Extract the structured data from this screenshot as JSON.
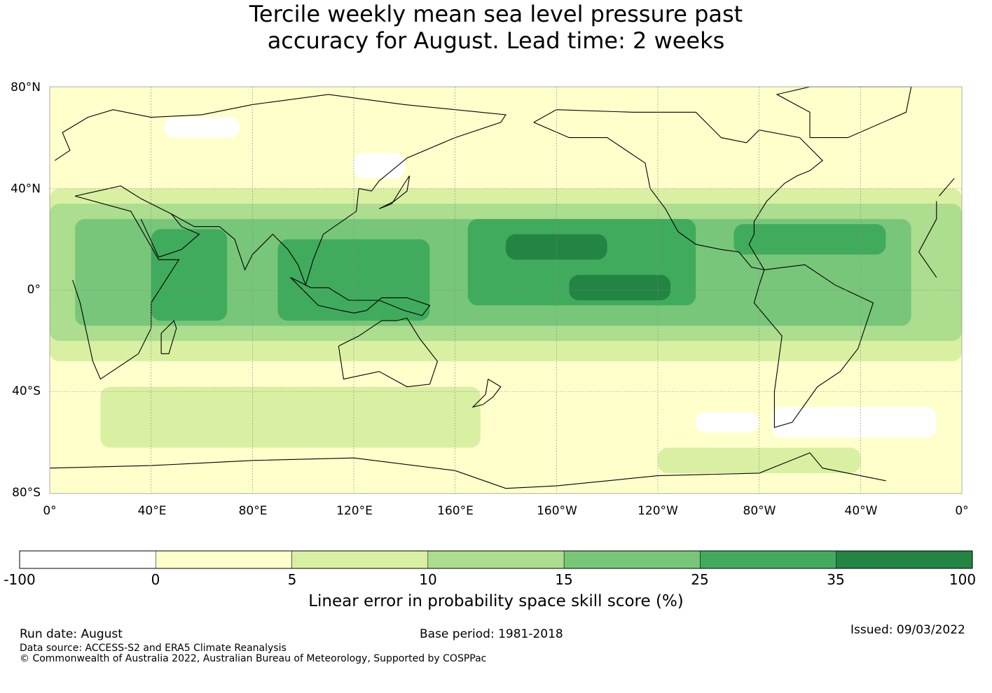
{
  "title": {
    "line1": "Tercile weekly mean sea level pressure past",
    "line2": "accuracy for August. Lead time: 2 weeks"
  },
  "map": {
    "lat_labels": [
      "80°N",
      "40°N",
      "0°",
      "40°S",
      "80°S"
    ],
    "lon_labels": [
      "0°",
      "40°E",
      "80°E",
      "120°E",
      "160°E",
      "160°W",
      "120°W",
      "80°W",
      "40°W",
      "0°"
    ],
    "projection": "plate-carree",
    "central_longitude": 180,
    "extent": {
      "lon": [
        0,
        360
      ],
      "lat": [
        -80,
        80
      ]
    },
    "gridlines": true,
    "coastlines": true
  },
  "colorbar": {
    "bins": [
      {
        "from": "-100",
        "to": "0",
        "color": "#ffffff"
      },
      {
        "from": "0",
        "to": "5",
        "color": "#ffffcc"
      },
      {
        "from": "5",
        "to": "10",
        "color": "#d9f0a3"
      },
      {
        "from": "10",
        "to": "15",
        "color": "#addd8e"
      },
      {
        "from": "15",
        "to": "25",
        "color": "#78c679"
      },
      {
        "from": "25",
        "to": "35",
        "color": "#41ab5d"
      },
      {
        "from": "35",
        "to": "100",
        "color": "#238443"
      }
    ],
    "ticks": [
      "-100",
      "0",
      "5",
      "10",
      "15",
      "25",
      "35",
      "100"
    ],
    "label": "Linear error in probability space skill score (%)"
  },
  "footer": {
    "run_date": "Run date: August",
    "base_period": "Base period: 1981-2018",
    "issued": "Issued: 09/03/2022",
    "data_source": "Data source: ACCESS-S2 and ERA5 Climate Reanalysis",
    "copyright": "© Commonwealth of Australia 2022, Australian Bureau of Meteorology, Supported by COSPPac"
  },
  "skill_regions": [
    {
      "bin": 2,
      "lon": [
        0,
        360
      ],
      "lat": [
        -28,
        40
      ]
    },
    {
      "bin": 3,
      "lon": [
        0,
        360
      ],
      "lat": [
        -20,
        34
      ]
    },
    {
      "bin": 4,
      "lon": [
        10,
        340
      ],
      "lat": [
        -14,
        28
      ]
    },
    {
      "bin": 5,
      "lon": [
        40,
        70
      ],
      "lat": [
        -12,
        24
      ]
    },
    {
      "bin": 5,
      "lon": [
        90,
        150
      ],
      "lat": [
        -12,
        20
      ]
    },
    {
      "bin": 5,
      "lon": [
        165,
        255
      ],
      "lat": [
        -6,
        28
      ]
    },
    {
      "bin": 5,
      "lon": [
        270,
        330
      ],
      "lat": [
        14,
        26
      ]
    },
    {
      "bin": 6,
      "lon": [
        180,
        220
      ],
      "lat": [
        12,
        22
      ]
    },
    {
      "bin": 6,
      "lon": [
        205,
        245
      ],
      "lat": [
        -4,
        6
      ]
    },
    {
      "bin": 1,
      "lon": [
        0,
        360
      ],
      "lat": [
        -80,
        -30
      ]
    },
    {
      "bin": 2,
      "lon": [
        20,
        170
      ],
      "lat": [
        -62,
        -38
      ]
    },
    {
      "bin": 2,
      "lon": [
        240,
        320
      ],
      "lat": [
        -72,
        -62
      ]
    },
    {
      "bin": 0,
      "lon": [
        255,
        280
      ],
      "lat": [
        -56,
        -48
      ]
    },
    {
      "bin": 0,
      "lon": [
        285,
        350
      ],
      "lat": [
        -58,
        -46
      ]
    },
    {
      "bin": 1,
      "lon": [
        0,
        360
      ],
      "lat": [
        42,
        80
      ]
    },
    {
      "bin": 0,
      "lon": [
        120,
        140
      ],
      "lat": [
        44,
        54
      ]
    },
    {
      "bin": 0,
      "lon": [
        45,
        75
      ],
      "lat": [
        60,
        68
      ]
    }
  ]
}
